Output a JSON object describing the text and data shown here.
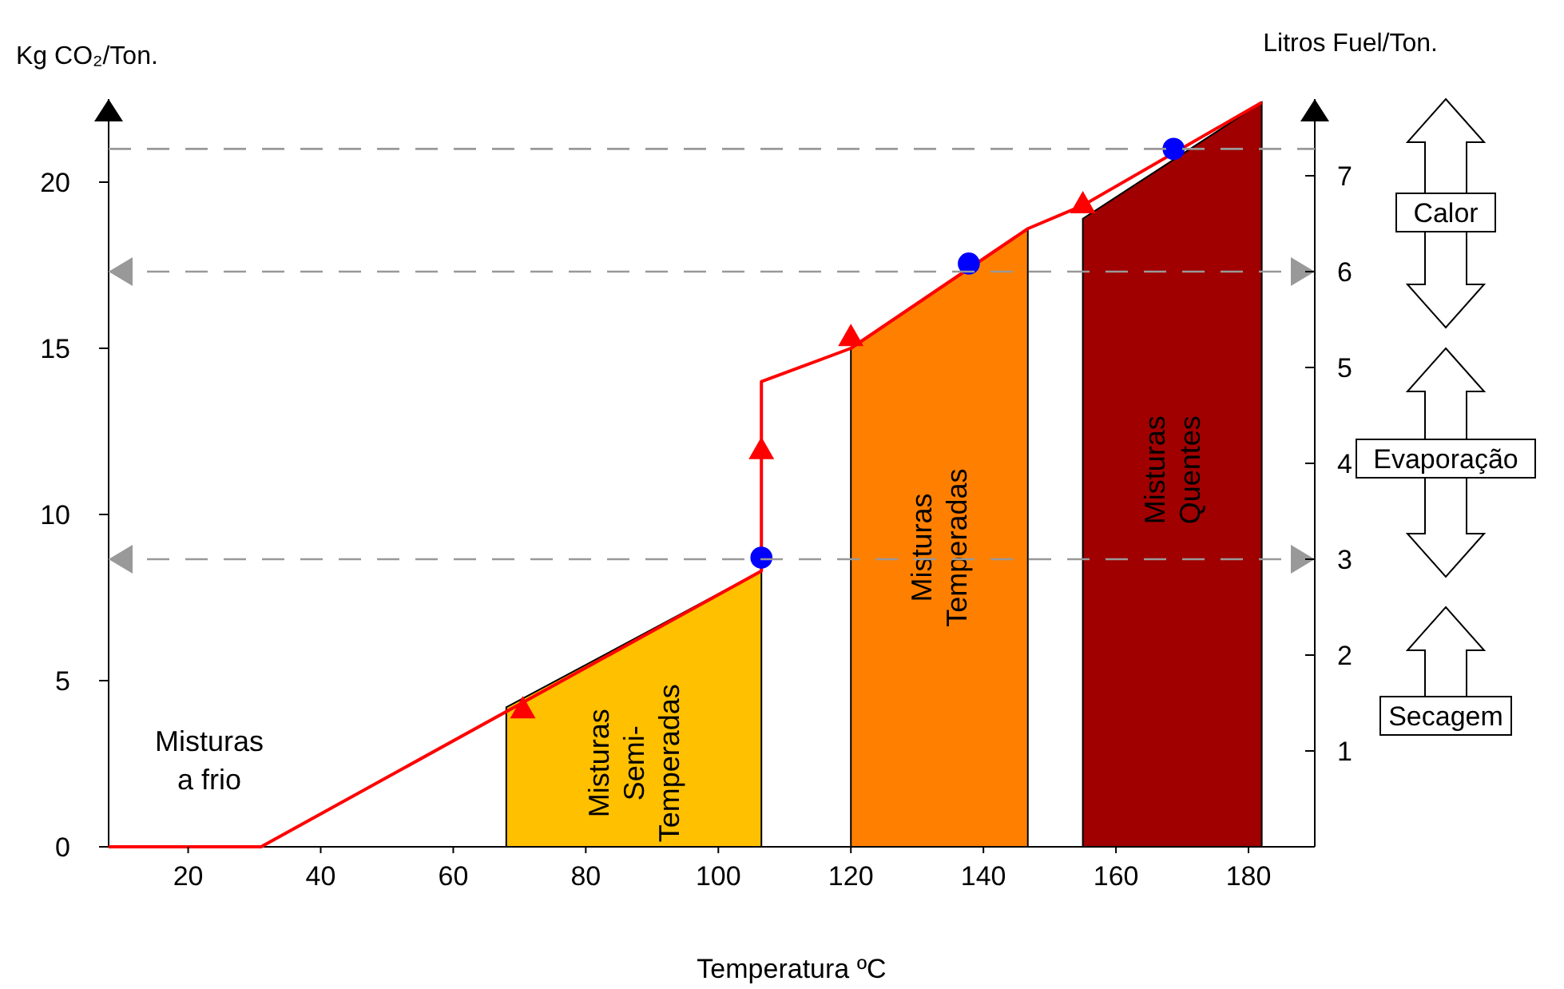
{
  "chart_data": {
    "type": "area",
    "xlabel": "Temperatura ºC",
    "ylabel": "Kg CO₂/Ton.",
    "y2label": "Litros Fuel/Ton.",
    "xlim": [
      8,
      190
    ],
    "xticks": [
      20,
      40,
      60,
      80,
      100,
      120,
      140,
      160,
      180
    ],
    "ylim": [
      0,
      22.5
    ],
    "yticks": [
      0,
      5,
      10,
      15,
      20
    ],
    "y2lim": [
      0,
      7.8
    ],
    "y2ticks": [
      1,
      2,
      3,
      4,
      5,
      6,
      7
    ],
    "grid": false,
    "series": [
      {
        "name": "Misturas Semi-Temperadas",
        "color": "#ffc000",
        "x": [
          68,
          106.5
        ],
        "values": [
          4.2,
          8.3
        ]
      },
      {
        "name": "Misturas Temperadas",
        "color": "#ff8000",
        "x": [
          120,
          146.7
        ],
        "values": [
          15.0,
          18.6
        ]
      },
      {
        "name": "Misturas Quentes",
        "color": "#a00000",
        "x": [
          155,
          182
        ],
        "values": [
          18.9,
          22.4
        ]
      },
      {
        "type": "line",
        "color": "#ff0000",
        "x": [
          8,
          31,
          106.5,
          106.5,
          120,
          146.7,
          155,
          182
        ],
        "values": [
          0,
          0,
          8.3,
          14.0,
          15.0,
          18.6,
          19.3,
          22.4
        ]
      },
      {
        "type": "scatter",
        "color": "#ff0000",
        "marker": "triangle",
        "x": [
          70.5,
          106.5,
          120,
          155
        ],
        "values": [
          4.2,
          12.0,
          15.4,
          19.4
        ]
      },
      {
        "type": "scatter",
        "color": "#0000ff",
        "marker": "circle",
        "x": [
          106.5,
          137.8,
          168.7
        ],
        "values": [
          8.7,
          17.55,
          21.0
        ]
      }
    ],
    "ref_lines": [
      {
        "axis": "y2",
        "value": 3,
        "color": "#999999",
        "line_style": "dashed"
      },
      {
        "axis": "y2",
        "value": 6,
        "color": "#999999",
        "line_style": "dashed"
      },
      {
        "axis": "y",
        "value": 21,
        "color": "#999999",
        "line_style": "dashed"
      }
    ],
    "annotations": [
      "Misturas a frio",
      "Calor",
      "Evaporação",
      "Secagem"
    ]
  }
}
